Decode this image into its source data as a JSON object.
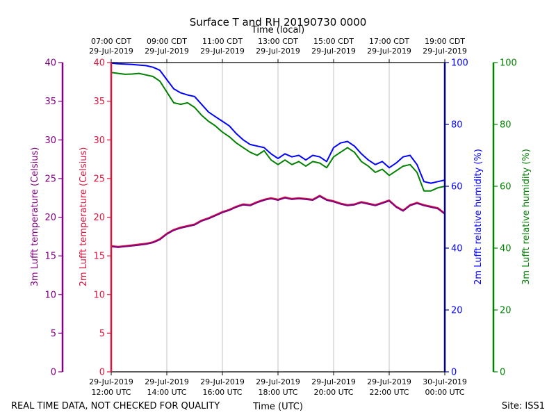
{
  "chart_data": {
    "type": "line",
    "title": "Surface T and RH 20190730 0000",
    "top_axis_title": "Time (local)",
    "bottom_axis_title": "Time (UTC)",
    "footer_left": "REAL TIME DATA, NOT CHECKED FOR QUALITY",
    "footer_right": "Site: ISS1",
    "x_range_hours": [
      0,
      12
    ],
    "x_grid_hours": [
      2,
      4,
      6,
      8,
      10
    ],
    "bottom_ticks": [
      {
        "hour": 0,
        "line1": "29-Jul-2019",
        "line2": "12:00 UTC"
      },
      {
        "hour": 2,
        "line1": "29-Jul-2019",
        "line2": "14:00 UTC"
      },
      {
        "hour": 4,
        "line1": "29-Jul-2019",
        "line2": "16:00 UTC"
      },
      {
        "hour": 6,
        "line1": "29-Jul-2019",
        "line2": "18:00 UTC"
      },
      {
        "hour": 8,
        "line1": "29-Jul-2019",
        "line2": "20:00 UTC"
      },
      {
        "hour": 10,
        "line1": "29-Jul-2019",
        "line2": "22:00 UTC"
      },
      {
        "hour": 12,
        "line1": "30-Jul-2019",
        "line2": "00:00 UTC"
      }
    ],
    "top_ticks": [
      {
        "hour": 0,
        "line1": "07:00 CDT",
        "line2": "29-Jul-2019"
      },
      {
        "hour": 2,
        "line1": "09:00 CDT",
        "line2": "29-Jul-2019"
      },
      {
        "hour": 4,
        "line1": "11:00 CDT",
        "line2": "29-Jul-2019"
      },
      {
        "hour": 6,
        "line1": "13:00 CDT",
        "line2": "29-Jul-2019"
      },
      {
        "hour": 8,
        "line1": "15:00 CDT",
        "line2": "29-Jul-2019"
      },
      {
        "hour": 10,
        "line1": "17:00 CDT",
        "line2": "29-Jul-2019"
      },
      {
        "hour": 12,
        "line1": "19:00 CDT",
        "line2": "29-Jul-2019"
      }
    ],
    "axes": {
      "t3m": {
        "label": "3m Lufft temperature (Celsius)",
        "color": "#800080",
        "ylim": [
          0,
          40
        ],
        "ticks": [
          0,
          5,
          10,
          15,
          20,
          25,
          30,
          35,
          40
        ]
      },
      "t2m": {
        "label": "2m Lufft temperature (Celsius)",
        "color": "#dc143c",
        "ylim": [
          0,
          40
        ],
        "ticks": [
          0,
          5,
          10,
          15,
          20,
          25,
          30,
          35,
          40
        ]
      },
      "rh2m": {
        "label": "2m Lufft relative humidity (%)",
        "color": "#0000ff",
        "spine_color": "#000080",
        "ylim": [
          0,
          100
        ],
        "ticks": [
          0,
          20,
          40,
          60,
          80,
          100
        ]
      },
      "rh3m": {
        "label": "3m Lufft relative humidity (%)",
        "color": "#008000",
        "ylim": [
          0,
          100
        ],
        "ticks": [
          0,
          20,
          40,
          60,
          80,
          100
        ]
      }
    },
    "series": [
      {
        "name": "2m Lufft relative humidity (%)",
        "axis": "rh2m",
        "color": "#0000ff",
        "x": [
          0,
          0.25,
          0.5,
          0.75,
          1.0,
          1.25,
          1.5,
          1.75,
          2.0,
          2.25,
          2.5,
          2.75,
          3.0,
          3.25,
          3.5,
          3.75,
          4.0,
          4.25,
          4.5,
          4.75,
          5.0,
          5.25,
          5.5,
          5.75,
          6.0,
          6.25,
          6.5,
          6.75,
          7.0,
          7.25,
          7.5,
          7.75,
          8.0,
          8.25,
          8.5,
          8.75,
          9.0,
          9.25,
          9.5,
          9.75,
          10.0,
          10.25,
          10.5,
          10.75,
          11.0,
          11.25,
          11.5,
          11.75,
          12.0
        ],
        "values": [
          99.8,
          99.6,
          99.5,
          99.4,
          99.2,
          99.0,
          98.5,
          97.5,
          94.5,
          91.5,
          90.2,
          89.5,
          89.0,
          86.5,
          84.0,
          82.5,
          81.0,
          79.5,
          77.0,
          75.0,
          73.5,
          73.0,
          72.5,
          70.5,
          69.0,
          70.5,
          69.5,
          70.0,
          68.5,
          70.0,
          69.5,
          68.0,
          72.5,
          74.0,
          74.5,
          73.0,
          70.5,
          68.5,
          67.0,
          68.0,
          66.0,
          67.5,
          69.5,
          70.0,
          67.0,
          61.5,
          61.0,
          61.5,
          62.0
        ]
      },
      {
        "name": "3m Lufft relative humidity (%)",
        "axis": "rh3m",
        "color": "#008000",
        "x": [
          0,
          0.25,
          0.5,
          0.75,
          1.0,
          1.25,
          1.5,
          1.75,
          2.0,
          2.25,
          2.5,
          2.75,
          3.0,
          3.25,
          3.5,
          3.75,
          4.0,
          4.25,
          4.5,
          4.75,
          5.0,
          5.25,
          5.5,
          5.75,
          6.0,
          6.25,
          6.5,
          6.75,
          7.0,
          7.25,
          7.5,
          7.75,
          8.0,
          8.25,
          8.5,
          8.75,
          9.0,
          9.25,
          9.5,
          9.75,
          10.0,
          10.25,
          10.5,
          10.75,
          11.0,
          11.25,
          11.5,
          11.75,
          12.0
        ],
        "values": [
          96.8,
          96.5,
          96.2,
          96.3,
          96.5,
          96.0,
          95.5,
          94.0,
          90.5,
          87.0,
          86.5,
          87.0,
          85.5,
          83.0,
          81.0,
          79.5,
          77.5,
          76.0,
          74.0,
          72.5,
          71.0,
          70.0,
          71.5,
          68.5,
          67.0,
          68.5,
          67.0,
          68.0,
          66.5,
          68.0,
          67.5,
          66.0,
          69.5,
          71.0,
          72.5,
          71.0,
          68.0,
          66.5,
          64.5,
          65.5,
          63.5,
          65.0,
          66.5,
          67.0,
          64.5,
          58.5,
          58.5,
          59.5,
          60.0
        ]
      },
      {
        "name": "2m Lufft temperature (Celsius)",
        "axis": "t2m",
        "color": "#dc143c",
        "x": [
          0,
          0.25,
          0.5,
          0.75,
          1.0,
          1.25,
          1.5,
          1.75,
          2.0,
          2.25,
          2.5,
          2.75,
          3.0,
          3.25,
          3.5,
          3.75,
          4.0,
          4.25,
          4.5,
          4.75,
          5.0,
          5.25,
          5.5,
          5.75,
          6.0,
          6.25,
          6.5,
          6.75,
          7.0,
          7.25,
          7.5,
          7.75,
          8.0,
          8.25,
          8.5,
          8.75,
          9.0,
          9.25,
          9.5,
          9.75,
          10.0,
          10.25,
          10.5,
          10.75,
          11.0,
          11.25,
          11.5,
          11.75,
          12.0
        ],
        "values": [
          16.3,
          16.2,
          16.3,
          16.4,
          16.5,
          16.6,
          16.8,
          17.2,
          17.9,
          18.4,
          18.7,
          18.9,
          19.1,
          19.6,
          19.9,
          20.3,
          20.7,
          21.0,
          21.4,
          21.7,
          21.6,
          22.0,
          22.3,
          22.5,
          22.3,
          22.6,
          22.4,
          22.5,
          22.4,
          22.3,
          22.8,
          22.3,
          22.1,
          21.8,
          21.6,
          21.7,
          22.0,
          21.8,
          21.6,
          21.9,
          22.2,
          21.4,
          20.9,
          21.6,
          21.9,
          21.6,
          21.4,
          21.2,
          20.5
        ]
      },
      {
        "name": "3m Lufft temperature (Celsius)",
        "axis": "t3m",
        "color": "#800080",
        "x": [
          0,
          0.25,
          0.5,
          0.75,
          1.0,
          1.25,
          1.5,
          1.75,
          2.0,
          2.25,
          2.5,
          2.75,
          3.0,
          3.25,
          3.5,
          3.75,
          4.0,
          4.25,
          4.5,
          4.75,
          5.0,
          5.25,
          5.5,
          5.75,
          6.0,
          6.25,
          6.5,
          6.75,
          7.0,
          7.25,
          7.5,
          7.75,
          8.0,
          8.25,
          8.5,
          8.75,
          9.0,
          9.25,
          9.5,
          9.75,
          10.0,
          10.25,
          10.5,
          10.75,
          11.0,
          11.25,
          11.5,
          11.75,
          12.0
        ],
        "values": [
          16.2,
          16.1,
          16.2,
          16.3,
          16.4,
          16.5,
          16.7,
          17.1,
          17.8,
          18.3,
          18.6,
          18.8,
          19.0,
          19.5,
          19.8,
          20.2,
          20.6,
          20.9,
          21.3,
          21.6,
          21.5,
          21.9,
          22.2,
          22.4,
          22.2,
          22.5,
          22.3,
          22.4,
          22.3,
          22.2,
          22.7,
          22.2,
          22.0,
          21.7,
          21.5,
          21.6,
          21.9,
          21.7,
          21.5,
          21.8,
          22.1,
          21.3,
          20.8,
          21.5,
          21.8,
          21.5,
          21.3,
          21.1,
          20.4
        ]
      }
    ]
  }
}
